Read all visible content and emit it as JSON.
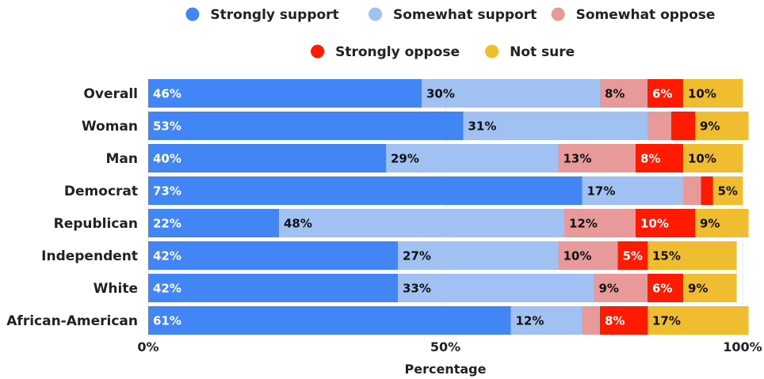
{
  "chart_data": {
    "type": "bar",
    "orientation": "horizontal",
    "stacked": true,
    "xlabel": "Percentage",
    "ylabel": "",
    "xlim": [
      0,
      100
    ],
    "x_ticks": [
      "0%",
      "50%",
      "100%"
    ],
    "x_tick_values": [
      0,
      50,
      100
    ],
    "grid": true,
    "legend_position": "top",
    "categories": [
      "Overall",
      "Woman",
      "Man",
      "Democrat",
      "Republican",
      "Independent",
      "White",
      "African-American"
    ],
    "series": [
      {
        "name": "Strongly support",
        "color": "#4285f4",
        "label_color": "#ffffff",
        "values": [
          46,
          53,
          40,
          73,
          22,
          42,
          42,
          61
        ],
        "labels": [
          "46%",
          "53%",
          "40%",
          "73%",
          "22%",
          "42%",
          "42%",
          "61%"
        ]
      },
      {
        "name": "Somewhat support",
        "color": "#a1c1f3",
        "label_color": "#111111",
        "values": [
          30,
          31,
          29,
          17,
          48,
          27,
          33,
          12
        ],
        "labels": [
          "30%",
          "31%",
          "29%",
          "17%",
          "48%",
          "27%",
          "33%",
          "12%"
        ]
      },
      {
        "name": "Somewhat oppose",
        "color": "#e89a9a",
        "label_color": "#111111",
        "values": [
          8,
          4,
          13,
          3,
          12,
          10,
          9,
          3
        ],
        "labels": [
          "8%",
          "",
          "13%",
          "",
          "12%",
          "10%",
          "9%",
          ""
        ]
      },
      {
        "name": "Strongly oppose",
        "color": "#ff1a00",
        "label_color": "#ffffff",
        "values": [
          6,
          4,
          8,
          2,
          10,
          5,
          6,
          8
        ],
        "labels": [
          "6%",
          "",
          "8%",
          "",
          "10%",
          "5%",
          "6%",
          "8%"
        ]
      },
      {
        "name": "Not sure",
        "color": "#f0bd30",
        "label_color": "#111111",
        "values": [
          10,
          9,
          10,
          5,
          9,
          15,
          9,
          17
        ],
        "labels": [
          "10%",
          "9%",
          "10%",
          "5%",
          "9%",
          "15%",
          "9%",
          "17%"
        ]
      }
    ]
  }
}
